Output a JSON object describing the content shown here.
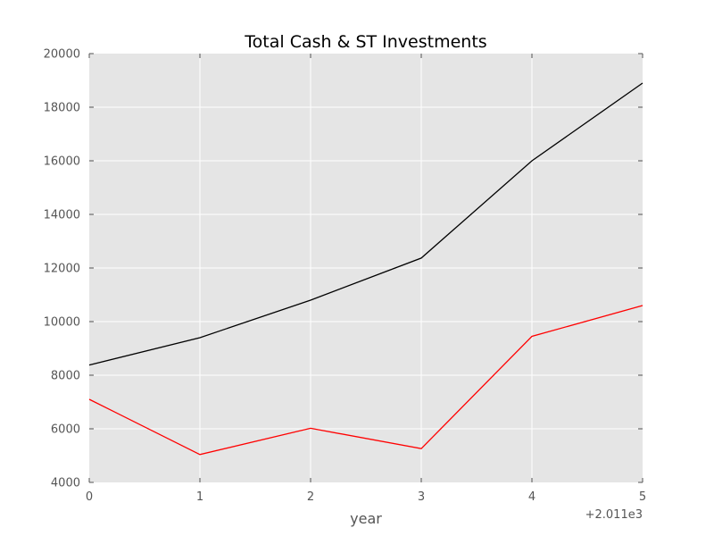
{
  "chart_data": {
    "type": "line",
    "title": "Total Cash & ST Investments",
    "xlabel": "year",
    "ylabel": "",
    "x_offset_label": "+2.011e3",
    "x": [
      0,
      1,
      2,
      3,
      4,
      5
    ],
    "x_tick_labels": [
      "0",
      "1",
      "2",
      "3",
      "4",
      "5"
    ],
    "xlim": [
      0,
      5
    ],
    "ylim": [
      4000,
      20000
    ],
    "y_ticks": [
      4000,
      6000,
      8000,
      10000,
      12000,
      14000,
      16000,
      18000,
      20000
    ],
    "y_tick_labels": [
      "4000",
      "6000",
      "8000",
      "10000",
      "12000",
      "14000",
      "16000",
      "18000",
      "20000"
    ],
    "grid": true,
    "background": "#e5e5e5",
    "series": [
      {
        "color": "#000000",
        "values": [
          8380,
          9400,
          10800,
          12370,
          16000,
          18900
        ]
      },
      {
        "color": "#ff0000",
        "values": [
          7100,
          5040,
          6020,
          5260,
          9450,
          10600
        ]
      }
    ]
  }
}
